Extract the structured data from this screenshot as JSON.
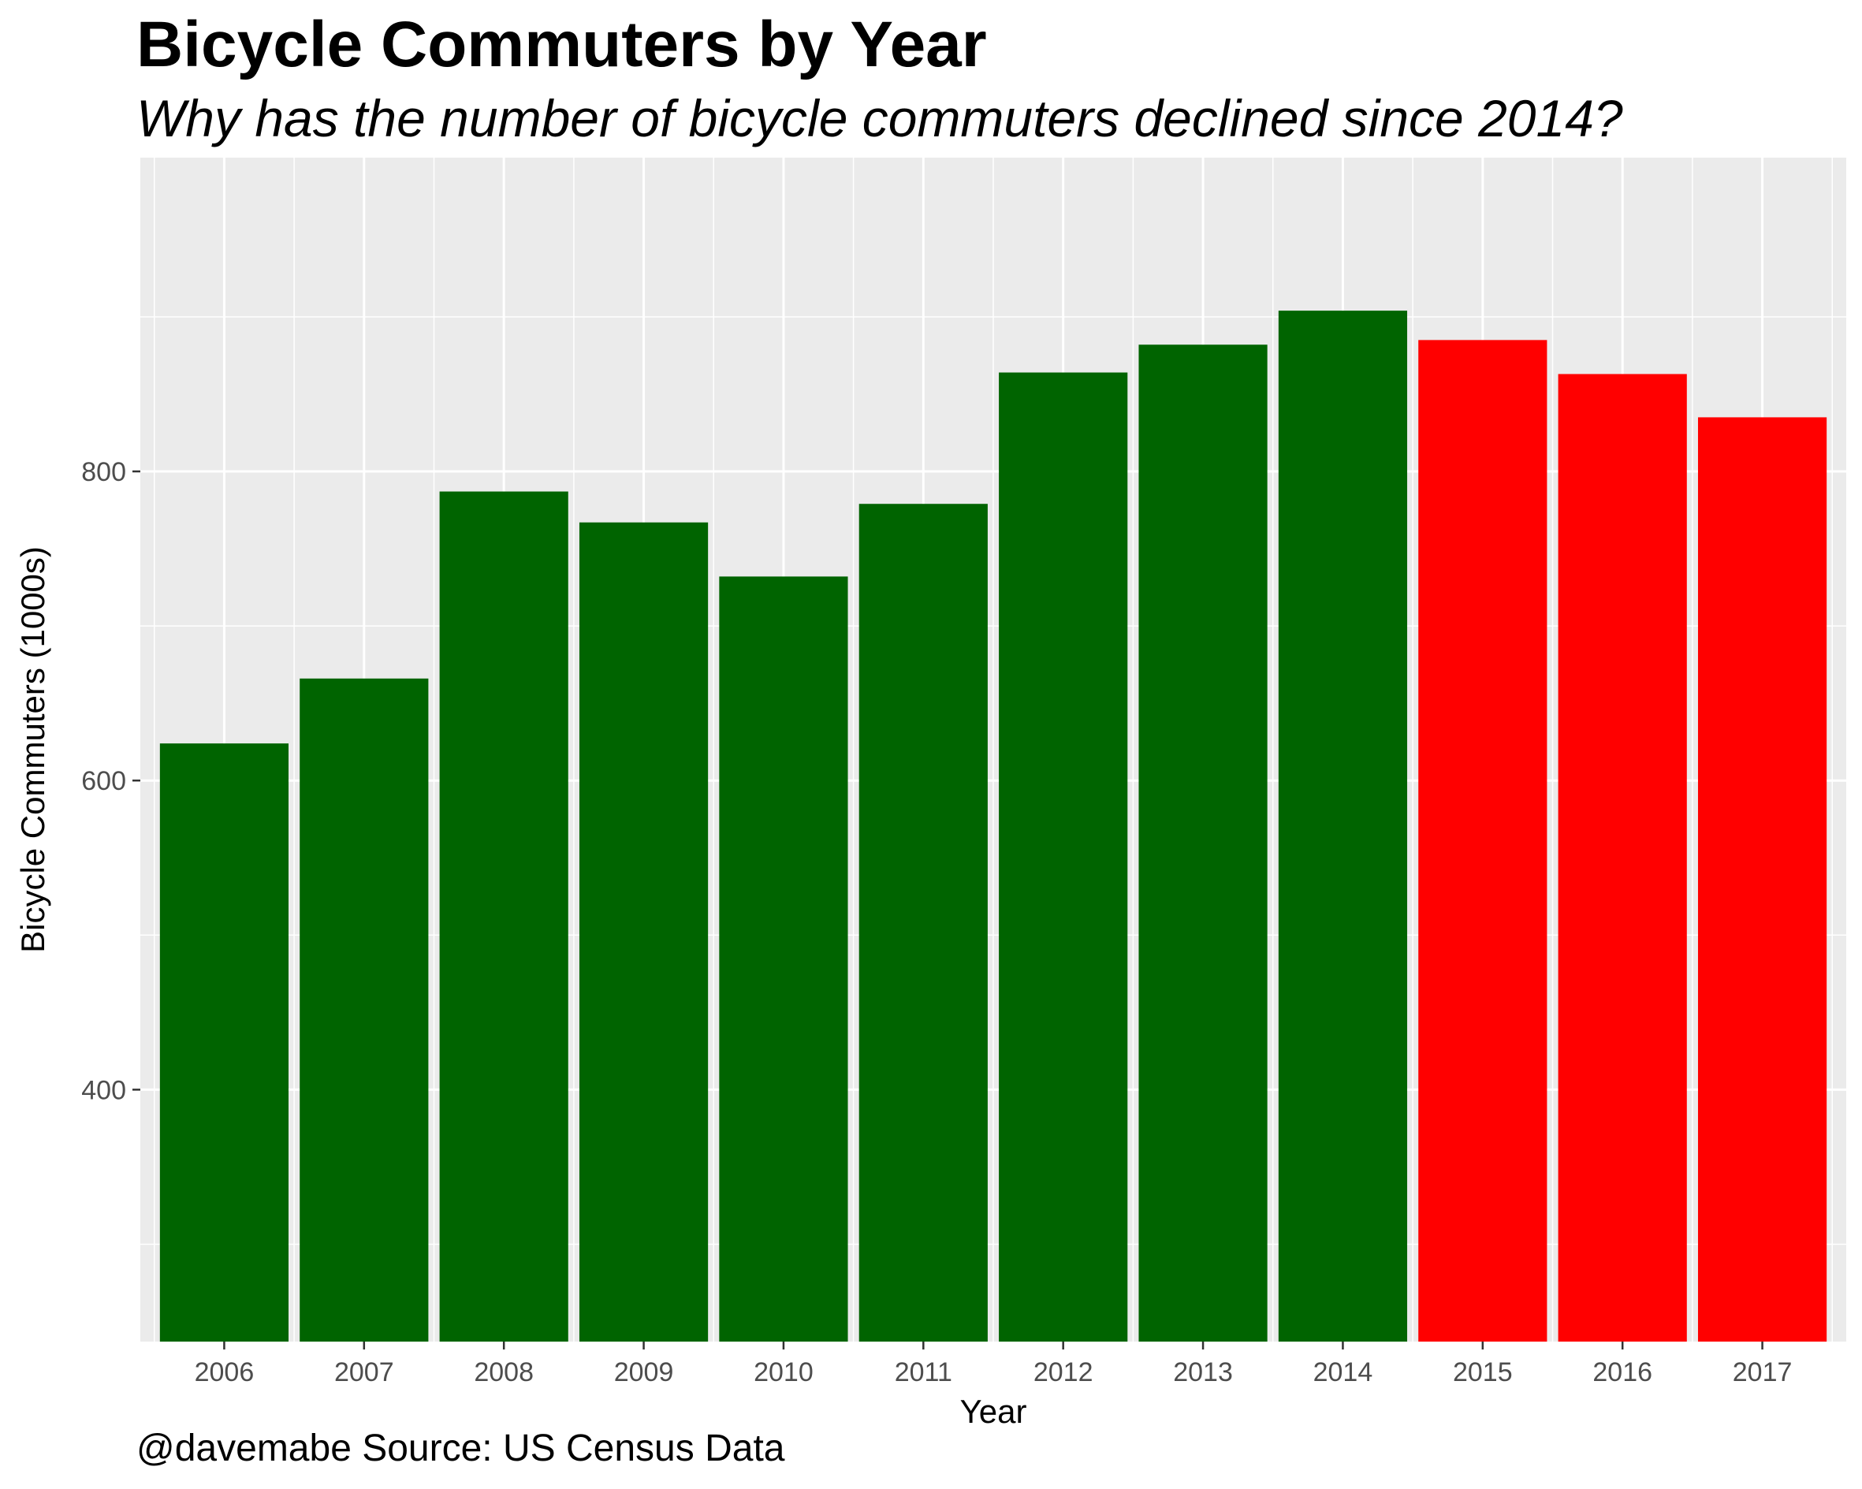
{
  "chart_data": {
    "type": "bar",
    "title": "Bicycle Commuters by Year",
    "subtitle": "Why has the number of bicycle commuters declined since 2014?",
    "caption": "@davemabe Source: US Census Data",
    "xlabel": "Year",
    "ylabel": "Bicycle Commuters (1000s)",
    "categories": [
      "2006",
      "2007",
      "2008",
      "2009",
      "2010",
      "2011",
      "2012",
      "2013",
      "2014",
      "2015",
      "2016",
      "2017"
    ],
    "values": [
      624,
      666,
      787,
      767,
      732,
      779,
      864,
      882,
      904,
      885,
      863,
      835
    ],
    "colors": [
      "#006400",
      "#006400",
      "#006400",
      "#006400",
      "#006400",
      "#006400",
      "#006400",
      "#006400",
      "#006400",
      "#ff0000",
      "#ff0000",
      "#ff0000"
    ],
    "ylim": [
      237,
      1003
    ],
    "yticks": [
      400,
      600,
      800
    ],
    "grid": true,
    "legend": "none",
    "panel_background": "#ebebeb"
  }
}
